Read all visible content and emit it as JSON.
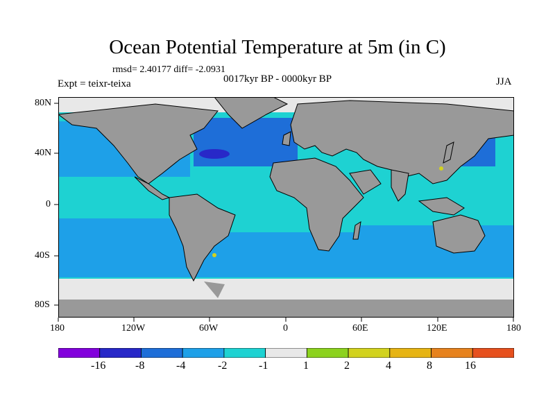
{
  "title": "Ocean Potential Temperature at 5m (in C)",
  "stats": "rmsd= 2.40177  diff= -2.0931",
  "period": "0017kyr BP - 0000kyr BP",
  "experiment": "Expt = teixr-teixa",
  "season": "JJA",
  "map": {
    "projection": "cylindrical equidistant",
    "lon_range": [
      -180,
      180
    ],
    "lat_range": [
      -90,
      90
    ],
    "land_color": "#999999",
    "ice_color": "#e8e8e8",
    "coastline_color": "#000000",
    "y_ticks": [
      "80N",
      "40N",
      "0",
      "40S",
      "80S"
    ],
    "x_ticks": [
      "180",
      "120W",
      "60W",
      "0",
      "60E",
      "120E",
      "180"
    ]
  },
  "colorbar": {
    "colors": [
      "#8200dc",
      "#2828c8",
      "#1e6ed8",
      "#1ea0e8",
      "#1ed2d2",
      "#e8e8e8",
      "#8cd21e",
      "#d2d21e",
      "#e6b414",
      "#e6821e",
      "#e6501e"
    ],
    "labels": [
      "-16",
      "-8",
      "-4",
      "-2",
      "-1",
      "1",
      "2",
      "4",
      "8",
      "16"
    ]
  }
}
